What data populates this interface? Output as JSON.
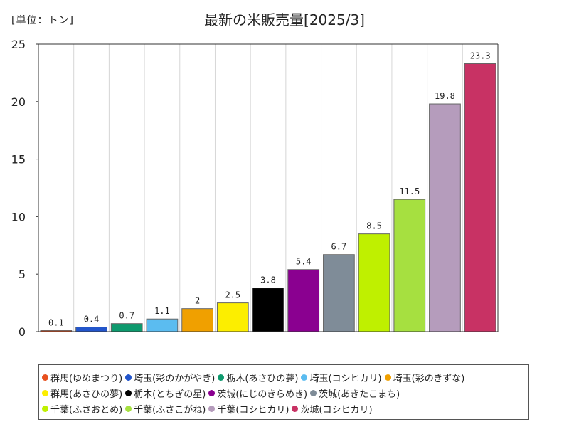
{
  "header": {
    "unit": "[単位：トン]",
    "title": "最新の米販売量[2025/3]"
  },
  "chart_data": {
    "type": "bar",
    "title": "最新の米販売量[2025/3]",
    "ylabel": "[単位：トン]",
    "xlabel": "",
    "ylim": [
      0,
      25
    ],
    "yticks": [
      "0",
      "5",
      "10",
      "15",
      "20",
      "25"
    ],
    "grid": "vertical",
    "legend_position": "bottom",
    "categories": [
      "群馬(ゆめまつり)",
      "埼玉(彩のかがやき)",
      "栃木(あさひの夢)",
      "埼玉(コシヒカリ)",
      "埼玉(彩のきずな)",
      "群馬(あさひの夢)",
      "栃木(とちぎの星)",
      "茨城(にじのきらめき)",
      "茨城(あきたこまち)",
      "千葉(ふさおとめ)",
      "千葉(ふさこがね)",
      "千葉(コシヒカリ)",
      "茨城(コシヒカリ)"
    ],
    "values": [
      0.1,
      0.4,
      0.7,
      1.1,
      2,
      2.5,
      3.8,
      5.4,
      6.7,
      8.5,
      11.5,
      19.8,
      23.3
    ],
    "value_labels": [
      "0.1",
      "0.4",
      "0.7",
      "1.1",
      "2",
      "2.5",
      "3.8",
      "5.4",
      "6.7",
      "8.5",
      "11.5",
      "19.8",
      "23.3"
    ],
    "colors": [
      "#e8501e",
      "#2255cc",
      "#0e9a6e",
      "#5bbcf0",
      "#f0a000",
      "#fcee00",
      "#000000",
      "#8a0090",
      "#7f8c98",
      "#bff000",
      "#a6e040",
      "#b59cbc",
      "#c83264"
    ]
  },
  "legend": {
    "rows": [
      [
        0,
        1,
        2,
        3,
        4
      ],
      [
        5,
        6,
        7,
        8
      ],
      [
        9,
        10,
        11,
        12
      ]
    ]
  }
}
